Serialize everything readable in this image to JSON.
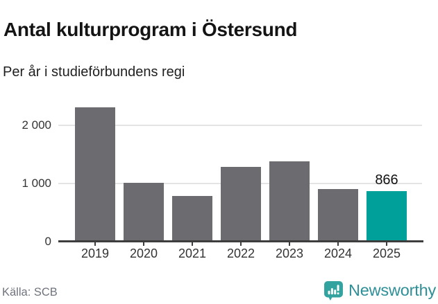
{
  "header": {
    "title": "Antal kulturprogram i Östersund",
    "subtitle": "Per år i studieförbundens regi"
  },
  "footer": {
    "source": "Källa: SCB",
    "brand_name": "Newsworthy",
    "brand_icon": "newsworthy-speech-bubble-bar-chart-icon"
  },
  "colors": {
    "bar_default": "#6b6b70",
    "bar_highlight": "#00a09a",
    "grid": "#e4e4e4",
    "axis": "#3d3d3d",
    "tick_label": "#333333",
    "value_label": "#111111",
    "source_text": "#6f737d",
    "brand_teal": "#2e8f97",
    "brand_icon_teal": "#33a39f"
  },
  "chart_data": {
    "type": "bar",
    "title": "Antal kulturprogram i Östersund",
    "subtitle": "Per år i studieförbundens regi",
    "xlabel": "",
    "ylabel": "",
    "categories": [
      "2019",
      "2020",
      "2021",
      "2022",
      "2023",
      "2024",
      "2025"
    ],
    "values": [
      2313,
      1010,
      787,
      1285,
      1377,
      906,
      866
    ],
    "highlight_index": 6,
    "highlight_value_label": "866",
    "yticks": [
      0,
      1000,
      2000
    ],
    "ytick_labels": [
      "0",
      "1 000",
      "2 000"
    ],
    "ylim": [
      0,
      2400
    ],
    "grid": "horizontal",
    "legend": "none",
    "source": "Källa: SCB"
  }
}
